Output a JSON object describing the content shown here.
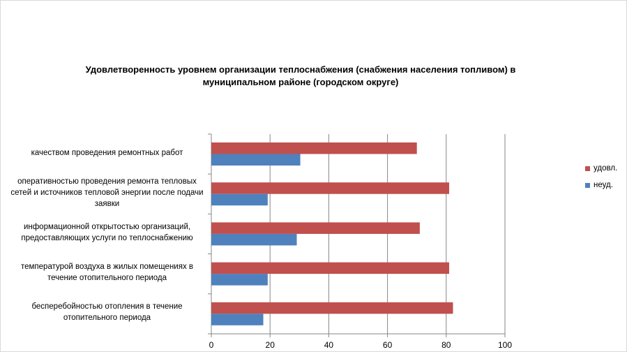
{
  "chart_data": {
    "type": "bar",
    "orientation": "horizontal",
    "title": "Удовлетворенность уровнем организации теплоснабжения (снабжения населения топливом) в муниципальном районе (городском округе)",
    "categories": [
      "качеством проведения ремонтных работ",
      "оперативностью проведения ремонта тепловых сетей и источников тепловой энергии после подачи заявки",
      "информационной открытостью организаций, предоставляющих услуги по теплоснабжению",
      "температурой воздуха в жилых помещениях в течение отопительного периода",
      "бесперебойностью отопления в течение отопительного периода"
    ],
    "series": [
      {
        "name": "удовл.",
        "color": "#c0504d",
        "values": [
          70,
          81,
          71,
          81,
          82.3
        ]
      },
      {
        "name": "неуд.",
        "color": "#4f81bd",
        "values": [
          30.3,
          19.2,
          29.1,
          19.2,
          17.7
        ]
      }
    ],
    "xlim": [
      0,
      100
    ],
    "xticks": [
      "0",
      "20",
      "40",
      "60",
      "80",
      "100"
    ],
    "grid": true,
    "legend": "right"
  }
}
